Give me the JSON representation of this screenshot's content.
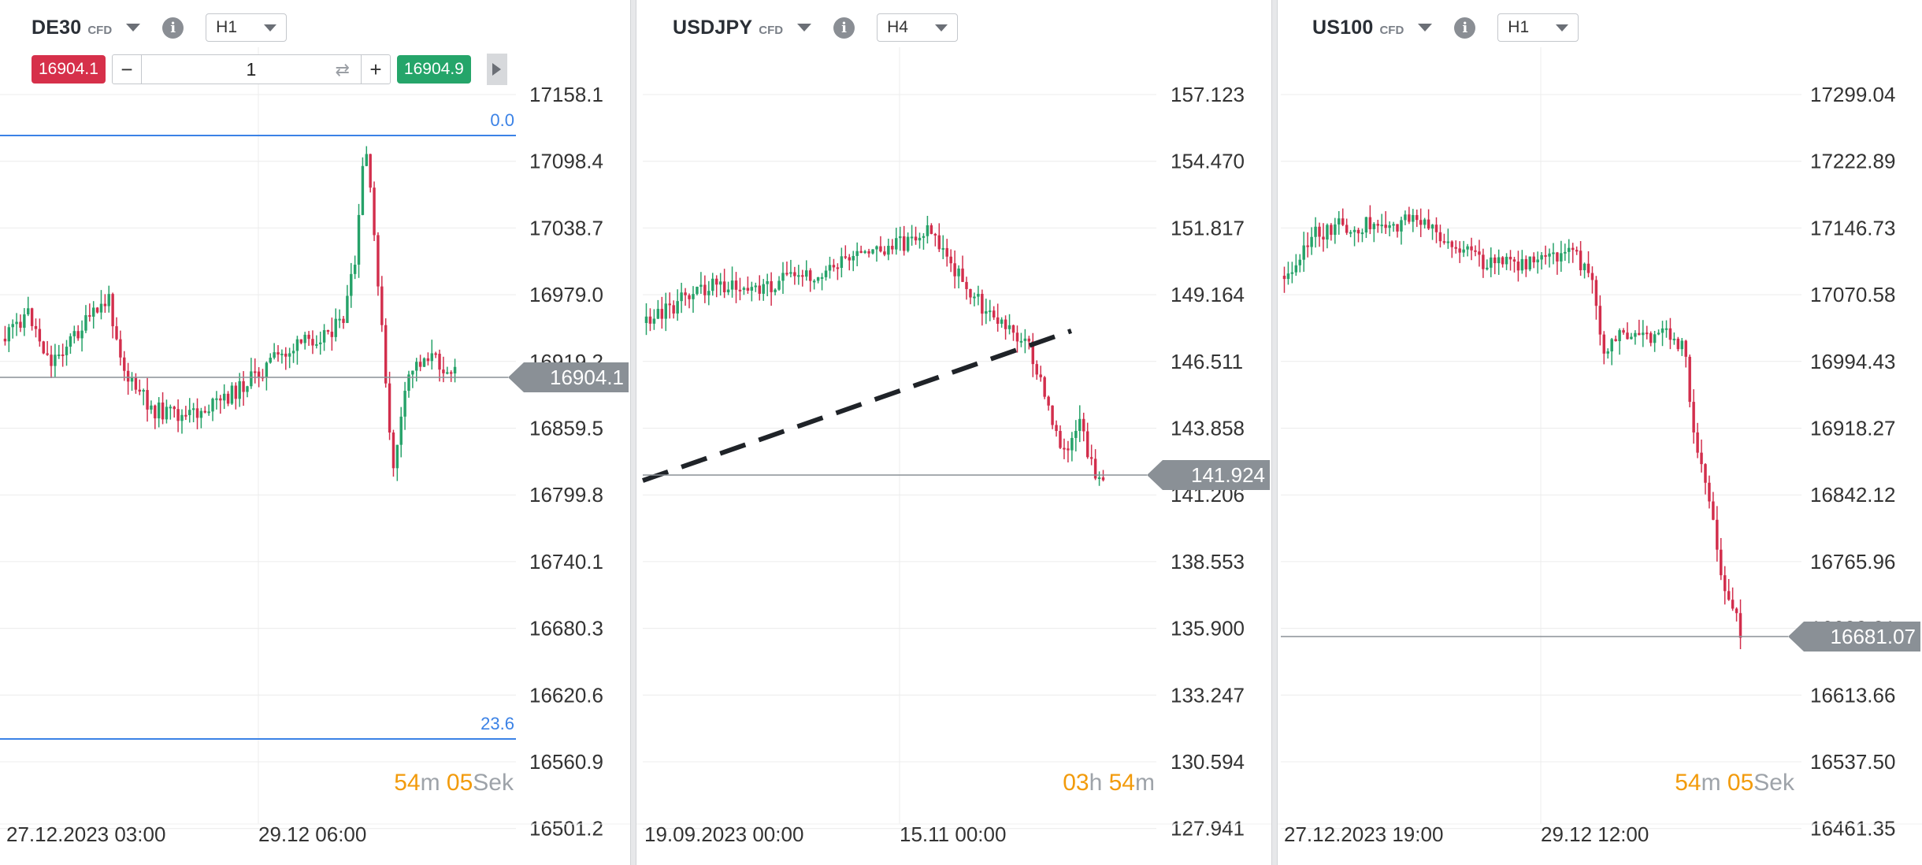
{
  "colors": {
    "up": "#26a269",
    "down": "#d22e4c",
    "grid": "#ececec",
    "fib": "#3b82e6",
    "axis_tag": "#8a9096",
    "countdown_num": "#f29b0c",
    "countdown_unit": "#9ea3a9"
  },
  "panels": [
    {
      "symbol": "DE30",
      "cfd": "CFD",
      "timeframe": "H1",
      "sell_price": "16904.1",
      "buy_price": "16904.9",
      "quantity": "1",
      "minus_label": "−",
      "plus_label": "+",
      "y_labels": [
        "17158.1",
        "17098.4",
        "17038.7",
        "16979.0",
        "16919.2",
        "16859.5",
        "16799.8",
        "16740.1",
        "16680.3",
        "16620.6",
        "16560.9",
        "16501.2"
      ],
      "current_price": "16904.1",
      "x_labels": [
        "27.12.2023 03:00",
        "29.12 06:00"
      ],
      "countdown": [
        {
          "num": "54",
          "unit": "m"
        },
        {
          "num": "05",
          "unit": "Sek"
        }
      ],
      "fib_levels": [
        {
          "label": "0.0",
          "value": 17088.0
        },
        {
          "label": "23.6",
          "value": 16584.0
        }
      ]
    },
    {
      "symbol": "USDJPY",
      "cfd": "CFD",
      "timeframe": "H4",
      "y_labels": [
        "157.123",
        "154.470",
        "151.817",
        "149.164",
        "146.511",
        "143.858",
        "141.206",
        "138.553",
        "135.900",
        "133.247",
        "130.594",
        "127.941"
      ],
      "current_price": "141.924",
      "x_labels": [
        "19.09.2023 00:00",
        "15.11 00:00"
      ],
      "countdown": [
        {
          "num": "03",
          "unit": "h"
        },
        {
          "num": "54",
          "unit": "m"
        }
      ]
    },
    {
      "symbol": "US100",
      "cfd": "CFD",
      "timeframe": "H1",
      "y_labels": [
        "17299.04",
        "17222.89",
        "17146.73",
        "17070.58",
        "16994.43",
        "16918.27",
        "16842.12",
        "16765.96",
        "16689.81",
        "16613.66",
        "16537.50",
        "16461.35"
      ],
      "current_price": "16681.07",
      "x_labels": [
        "27.12.2023 19:00",
        "29.12 12:00"
      ],
      "countdown": [
        {
          "num": "54",
          "unit": "m"
        },
        {
          "num": "05",
          "unit": "Sek"
        }
      ]
    }
  ]
}
